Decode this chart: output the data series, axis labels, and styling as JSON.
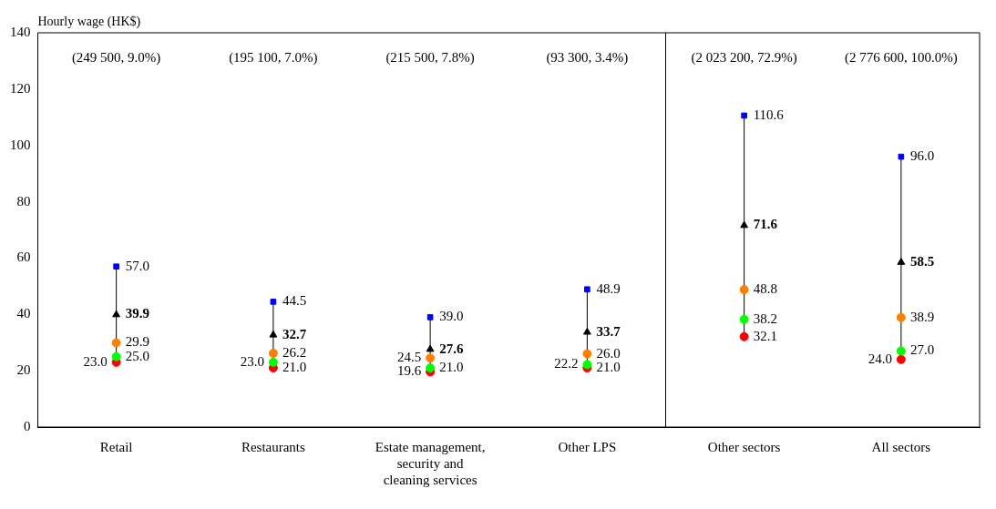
{
  "chart_data": {
    "type": "scatter",
    "ylabel": "Hourly wage (HK$)",
    "categories": [
      "Retail",
      "Restaurants",
      "Estate management, security and cleaning services",
      "Other LPS",
      "Other sectors",
      "All sectors"
    ],
    "series": [
      {
        "color": "#0000ff",
        "marker": "square",
        "values": [
          57.0,
          44.5,
          39.0,
          48.9,
          110.6,
          96.0
        ],
        "value_labels": [
          "57.0",
          "44.5",
          "39.0",
          "48.9",
          "110.6",
          "96.0"
        ]
      },
      {
        "color": "#000000",
        "marker": "triangle",
        "values": [
          39.9,
          32.7,
          27.6,
          33.7,
          71.6,
          58.5
        ],
        "value_labels": [
          "39.9",
          "32.7",
          "27.6",
          "33.7",
          "71.6",
          "58.5"
        ]
      },
      {
        "color": "#ff8000",
        "marker": "circle",
        "values": [
          29.9,
          26.2,
          24.5,
          26.0,
          48.8,
          38.9
        ],
        "value_labels": [
          "29.9",
          "26.2",
          "24.5",
          "26.0",
          "48.8",
          "38.9"
        ]
      },
      {
        "color": "#00ff00",
        "marker": "circle",
        "values": [
          25.0,
          23.0,
          21.0,
          22.2,
          38.2,
          27.0
        ],
        "value_labels": [
          "25.0",
          "23.0",
          "21.0",
          "22.2",
          "38.2",
          "27.0"
        ]
      },
      {
        "color": "#ff0000",
        "marker": "circle",
        "values": [
          23.0,
          21.0,
          19.6,
          21.0,
          32.1,
          24.0
        ],
        "value_labels": [
          "23.0",
          "21.0",
          "19.6",
          "21.0",
          "32.1",
          "24.0"
        ]
      }
    ],
    "ylim": [
      0,
      140
    ],
    "yticks": [
      0,
      20,
      40,
      60,
      80,
      100,
      120,
      140
    ],
    "grid": false,
    "legend": false,
    "annotations": [
      "(249 500, 9.0%)",
      "(195 100, 7.0%)",
      "(215 500, 7.8%)",
      "(93 300, 3.4%)",
      "(2 023 200, 72.9%)",
      "(2 776 600, 100.0%)"
    ]
  }
}
